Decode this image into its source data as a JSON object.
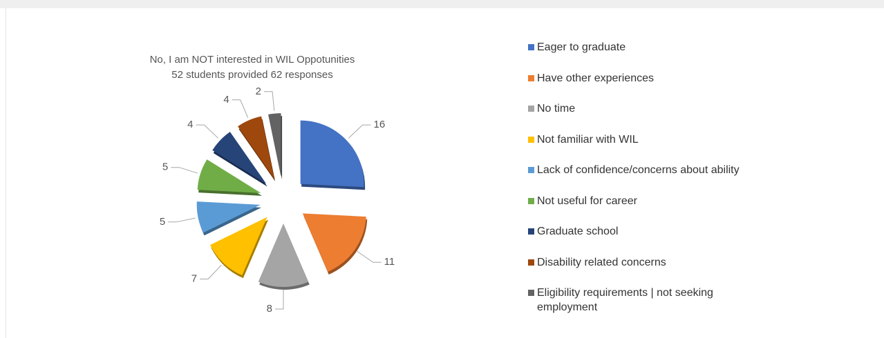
{
  "chart_data": {
    "type": "pie",
    "title": "No, I am NOT interested in WIL Oppotunities",
    "subtitle": "52 students provided 62 responses",
    "categories": [
      "Eager to graduate",
      "Have other experiences",
      "No time",
      "Not familiar with WIL",
      "Lack of confidence/concerns about ability",
      "Not useful for career",
      "Graduate school",
      "Disability related concerns",
      "Eligibility requirements | not seeking employment"
    ],
    "values": [
      16,
      11,
      8,
      7,
      5,
      5,
      4,
      4,
      2
    ],
    "colors": [
      "#4472c4",
      "#ed7d31",
      "#a5a5a5",
      "#ffc000",
      "#5b9bd5",
      "#70ad47",
      "#264478",
      "#9e480e",
      "#636363"
    ],
    "legend": "right"
  }
}
